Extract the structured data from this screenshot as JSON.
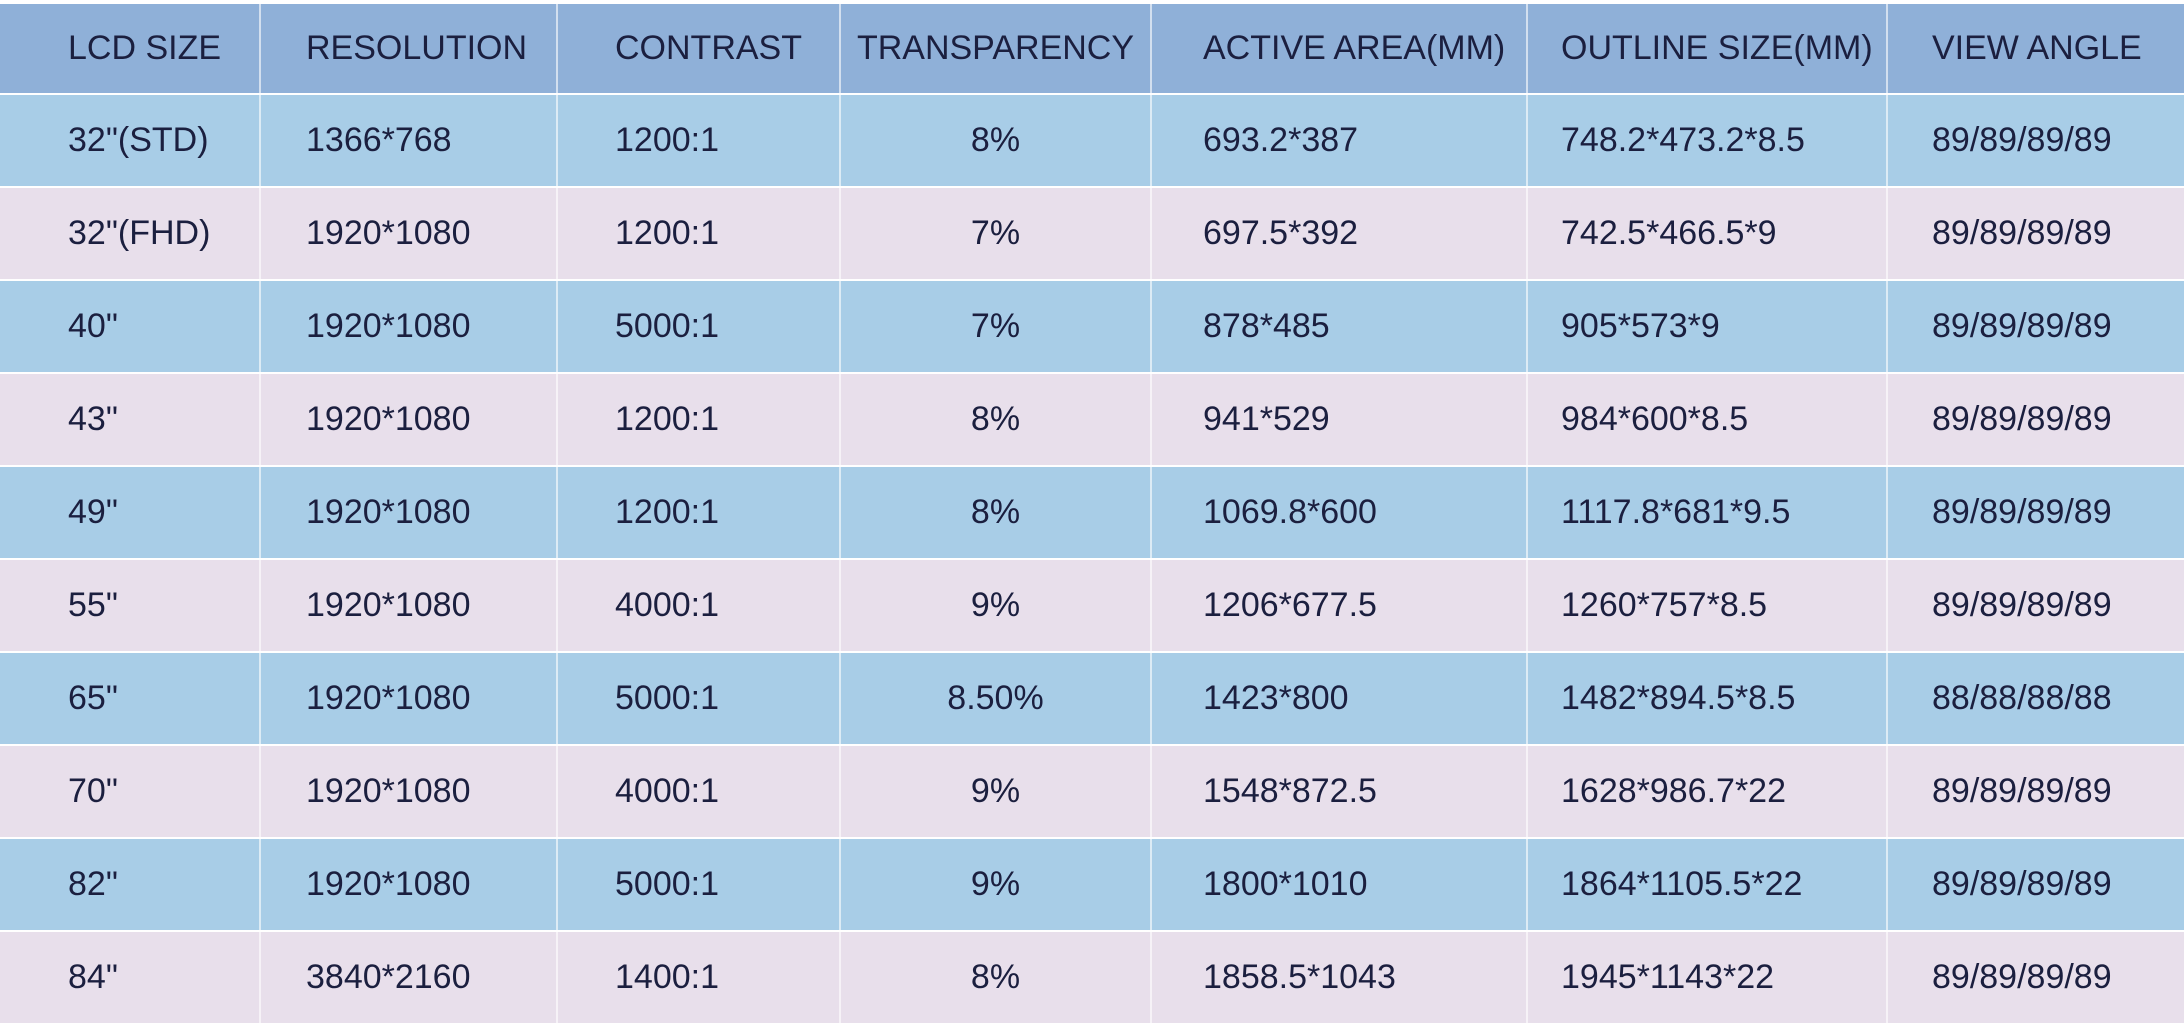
{
  "table": {
    "header": [
      "LCD SIZE",
      "RESOLUTION",
      "CONTRAST",
      "TRANSPARENCY",
      "ACTIVE AREA(MM)",
      "OUTLINE SIZE(MM)",
      "VIEW ANGLE"
    ],
    "rows": [
      [
        "32\"(STD)",
        "1366*768",
        "1200:1",
        "8%",
        "693.2*387",
        "748.2*473.2*8.5",
        "89/89/89/89"
      ],
      [
        "32\"(FHD)",
        "1920*1080",
        "1200:1",
        "7%",
        "697.5*392",
        "742.5*466.5*9",
        "89/89/89/89"
      ],
      [
        "40\"",
        "1920*1080",
        "5000:1",
        "7%",
        "878*485",
        "905*573*9",
        "89/89/89/89"
      ],
      [
        "43\"",
        "1920*1080",
        "1200:1",
        "8%",
        "941*529",
        "984*600*8.5",
        "89/89/89/89"
      ],
      [
        "49\"",
        "1920*1080",
        "1200:1",
        "8%",
        "1069.8*600",
        "1117.8*681*9.5",
        "89/89/89/89"
      ],
      [
        "55\"",
        "1920*1080",
        "4000:1",
        "9%",
        "1206*677.5",
        "1260*757*8.5",
        "89/89/89/89"
      ],
      [
        "65\"",
        "1920*1080",
        "5000:1",
        "8.50%",
        "1423*800",
        "1482*894.5*8.5",
        "88/88/88/88"
      ],
      [
        "70\"",
        "1920*1080",
        "4000:1",
        "9%",
        "1548*872.5",
        "1628*986.7*22",
        "89/89/89/89"
      ],
      [
        "82\"",
        "1920*1080",
        "5000:1",
        "9%",
        "1800*1010",
        "1864*1105.5*22",
        "89/89/89/89"
      ],
      [
        "84\"",
        "3840*2160",
        "1400:1",
        "8%",
        "1858.5*1043",
        "1945*1143*22",
        "89/89/89/89"
      ]
    ]
  }
}
